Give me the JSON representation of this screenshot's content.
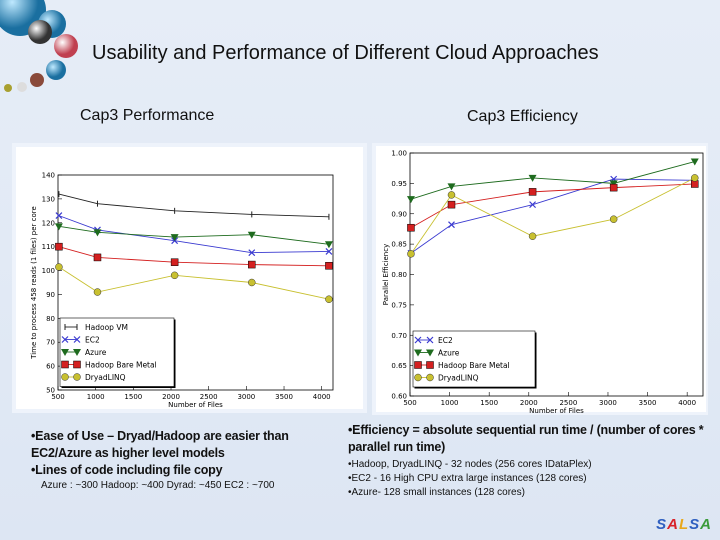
{
  "slide": {
    "title": "Usability and Performance of Different Cloud Approaches",
    "left_heading": "Cap3 Performance",
    "right_heading": "Cap3 Efficiency",
    "left_notes": [
      "•Ease of Use – Dryad/Hadoop are easier than EC2/Azure as higher level models",
      "•Lines of code including  file copy"
    ],
    "left_loc": "Azure : ~300  Hadoop: ~400  Dyrad: ~450  EC2 : ~700",
    "right_main": "•Efficiency = absolute sequential run time / (number of cores * parallel run time)",
    "right_bullets": [
      "•Hadoop, DryadLINQ  - 32 nodes (256 cores IDataPlex)",
      "•EC2 - 16 High CPU extra large instances (128 cores)",
      "•Azure- 128 small instances (128 cores)"
    ],
    "brand": {
      "letters": [
        "S",
        "A",
        "L",
        "S",
        "A"
      ],
      "colors": [
        "#2f5fc0",
        "#d8232a",
        "#e8a81c",
        "#2f5fc0",
        "#3b9b3a"
      ]
    }
  },
  "chart_data": [
    {
      "type": "line",
      "title": "",
      "xlabel": "Number of Files",
      "ylabel": "Time to process 458 reads (1 files) per core",
      "xlim": [
        500,
        4150
      ],
      "ylim": [
        50,
        140
      ],
      "xticks": [
        500,
        1000,
        1500,
        2000,
        2500,
        3000,
        3500,
        4000
      ],
      "yticks": [
        50,
        60,
        70,
        80,
        90,
        100,
        110,
        120,
        130,
        140
      ],
      "grid": false,
      "legend": "bottom-left",
      "x": [
        512,
        1024,
        2048,
        3072,
        4096
      ],
      "series": [
        {
          "name": "Hadoop VM",
          "color": "#222222",
          "marker": "tick",
          "values": [
            132,
            128,
            125,
            123.5,
            122.5
          ]
        },
        {
          "name": "EC2",
          "color": "#3a3ad0",
          "marker": "x",
          "values": [
            123,
            117,
            112.5,
            107.5,
            108
          ]
        },
        {
          "name": "Azure",
          "color": "#1e6b1e",
          "marker": "tri",
          "values": [
            118.5,
            116,
            114,
            115,
            111
          ]
        },
        {
          "name": "Hadoop Bare Metal",
          "color": "#d42020",
          "marker": "square",
          "values": [
            110,
            105.5,
            103.5,
            102.5,
            102
          ]
        },
        {
          "name": "DryadLINQ",
          "color": "#c8c030",
          "marker": "circle",
          "values": [
            101.5,
            91,
            98,
            95,
            88
          ]
        }
      ]
    },
    {
      "type": "line",
      "title": "",
      "xlabel": "Number of Files",
      "ylabel": "Parallel Efficiency",
      "xlim": [
        500,
        4200
      ],
      "ylim": [
        0.6,
        1.0
      ],
      "xticks": [
        500,
        1000,
        1500,
        2000,
        2500,
        3000,
        3500,
        4000
      ],
      "yticks": [
        0.6,
        0.65,
        0.7,
        0.75,
        0.8,
        0.85,
        0.9,
        0.95,
        1.0
      ],
      "grid": false,
      "legend": "bottom-left",
      "x": [
        512,
        1024,
        2048,
        3072,
        4096
      ],
      "series": [
        {
          "name": "EC2",
          "color": "#3a3ad0",
          "marker": "x",
          "values": [
            0.835,
            0.882,
            0.915,
            0.957,
            0.955
          ]
        },
        {
          "name": "Azure",
          "color": "#1e6b1e",
          "marker": "tri",
          "values": [
            0.924,
            0.945,
            0.959,
            0.95,
            0.986
          ]
        },
        {
          "name": "Hadoop Bare Metal",
          "color": "#d42020",
          "marker": "square",
          "values": [
            0.877,
            0.915,
            0.936,
            0.943,
            0.949
          ]
        },
        {
          "name": "DryadLINQ",
          "color": "#c8c030",
          "marker": "circle",
          "values": [
            0.834,
            0.931,
            0.863,
            0.891,
            0.959
          ]
        }
      ]
    }
  ]
}
